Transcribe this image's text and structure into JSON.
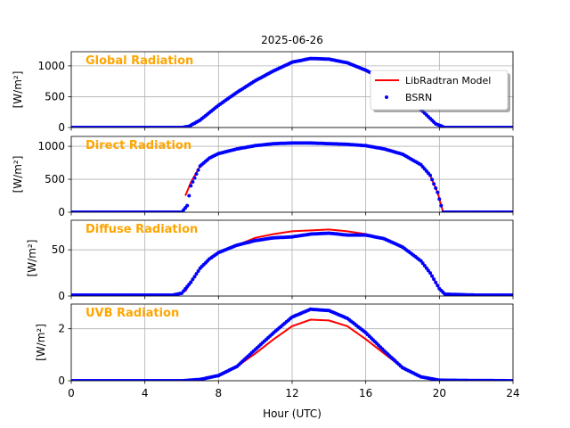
{
  "figure": {
    "title": "2025-06-26",
    "xlabel": "Hour (UTC)",
    "legend": {
      "placement": "top-right of first panel",
      "model_label": "LibRadtran Model",
      "obs_label": "BSRN"
    }
  },
  "colors": {
    "model": "#ff0000",
    "obs": "#0000ff",
    "panel_label": "#ffa500",
    "grid": "#b0b0b0",
    "axis": "#000000"
  },
  "chart_data": [
    {
      "type": "line",
      "panel_label": "Global Radiation",
      "ylabel": "[W/m²]",
      "xlim": [
        0,
        24
      ],
      "ylim": [
        0,
        1230
      ],
      "yticks": [
        0,
        500,
        1000
      ],
      "grid": true,
      "series": [
        {
          "name": "LibRadtran Model",
          "style": "line",
          "x": [
            6.2,
            7,
            8,
            9,
            10,
            11,
            12,
            13,
            14,
            15,
            16,
            17,
            18,
            19,
            19.8,
            20.2
          ],
          "y": [
            0,
            120,
            360,
            570,
            760,
            920,
            1050,
            1110,
            1100,
            1040,
            920,
            760,
            540,
            280,
            60,
            0
          ]
        },
        {
          "name": "BSRN",
          "style": "points",
          "x": [
            0,
            2,
            4,
            6,
            6.4,
            7,
            8,
            9,
            10,
            11,
            12,
            13,
            14,
            15,
            16,
            17,
            18,
            19,
            19.8,
            20.3,
            22,
            24
          ],
          "y": [
            0,
            0,
            0,
            0,
            20,
            120,
            360,
            570,
            760,
            920,
            1060,
            1120,
            1110,
            1050,
            930,
            770,
            550,
            290,
            60,
            0,
            0,
            0
          ]
        }
      ]
    },
    {
      "type": "line",
      "panel_label": "Direct Radiation",
      "ylabel": "[W/m²]",
      "xlim": [
        0,
        24
      ],
      "ylim": [
        0,
        1150
      ],
      "yticks": [
        0,
        500,
        1000
      ],
      "grid": true,
      "series": [
        {
          "name": "LibRadtran Model",
          "style": "line",
          "x": [
            6.2,
            6.5,
            7,
            7.5,
            8,
            9,
            10,
            11,
            12,
            13,
            14,
            15,
            16,
            17,
            18,
            19,
            19.5,
            19.9,
            20.2
          ],
          "y": [
            250,
            450,
            700,
            820,
            890,
            960,
            1010,
            1040,
            1050,
            1050,
            1040,
            1030,
            1010,
            960,
            880,
            720,
            560,
            300,
            0
          ]
        },
        {
          "name": "BSRN",
          "style": "points",
          "x": [
            0,
            3,
            6,
            6.3,
            6.5,
            7,
            7.5,
            8,
            9,
            10,
            11,
            12,
            13,
            14,
            15,
            16,
            17,
            18,
            19,
            19.5,
            19.9,
            20.2,
            22,
            24
          ],
          "y": [
            0,
            0,
            0,
            100,
            400,
            700,
            820,
            890,
            960,
            1010,
            1040,
            1050,
            1050,
            1040,
            1030,
            1010,
            960,
            880,
            720,
            560,
            300,
            0,
            0,
            0
          ]
        }
      ]
    },
    {
      "type": "line",
      "panel_label": "Diffuse Radiation",
      "ylabel": "[W/m²]",
      "xlim": [
        0,
        24
      ],
      "ylim": [
        0,
        82
      ],
      "yticks": [
        0,
        50
      ],
      "grid": true,
      "series": [
        {
          "name": "LibRadtran Model",
          "style": "line",
          "x": [
            6.2,
            6.5,
            7,
            7.5,
            8,
            9,
            10,
            11,
            12,
            13,
            14,
            15,
            16,
            17,
            18,
            19,
            19.5,
            20,
            20.3
          ],
          "y": [
            5,
            15,
            30,
            40,
            47,
            55,
            63,
            67,
            70,
            71,
            72,
            70,
            67,
            62,
            53,
            38,
            25,
            8,
            2
          ]
        },
        {
          "name": "BSRN",
          "style": "points",
          "x": [
            0,
            2,
            4,
            5.5,
            6,
            6.5,
            7,
            7.5,
            8,
            9,
            10,
            11,
            12,
            13,
            14,
            15,
            16,
            17,
            18,
            19,
            19.5,
            20,
            20.3,
            22,
            24
          ],
          "y": [
            1,
            1,
            1,
            1,
            3,
            15,
            30,
            40,
            47,
            55,
            60,
            63,
            64,
            67,
            68,
            66,
            66,
            62,
            53,
            38,
            25,
            8,
            2,
            1,
            1
          ]
        }
      ]
    },
    {
      "type": "line",
      "panel_label": "UVB Radiation",
      "ylabel": "[W/m²]",
      "xlim": [
        0,
        24
      ],
      "ylim": [
        0,
        2.95
      ],
      "yticks": [
        0,
        2
      ],
      "grid": true,
      "series": [
        {
          "name": "LibRadtran Model",
          "style": "line",
          "x": [
            0,
            6,
            7,
            8,
            9,
            10,
            11,
            12,
            13,
            14,
            15,
            16,
            17,
            18,
            19,
            20,
            24
          ],
          "y": [
            0,
            0,
            0.05,
            0.2,
            0.55,
            1.05,
            1.6,
            2.1,
            2.35,
            2.32,
            2.1,
            1.6,
            1.05,
            0.5,
            0.15,
            0.02,
            0
          ]
        },
        {
          "name": "BSRN",
          "style": "points",
          "x": [
            0,
            6,
            7,
            8,
            9,
            10,
            11,
            12,
            13,
            14,
            15,
            16,
            17,
            18,
            19,
            20,
            24
          ],
          "y": [
            0,
            0,
            0.05,
            0.2,
            0.55,
            1.2,
            1.85,
            2.45,
            2.75,
            2.7,
            2.4,
            1.85,
            1.15,
            0.5,
            0.15,
            0.02,
            0
          ]
        }
      ]
    }
  ],
  "xticks": [
    0,
    4,
    8,
    12,
    16,
    20,
    24
  ]
}
